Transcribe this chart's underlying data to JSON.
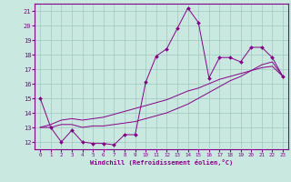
{
  "xlabel": "Windchill (Refroidissement éolien,°C)",
  "xlim": [
    -0.5,
    23.5
  ],
  "ylim": [
    11.5,
    21.5
  ],
  "yticks": [
    12,
    13,
    14,
    15,
    16,
    17,
    18,
    19,
    20,
    21
  ],
  "xticks": [
    0,
    1,
    2,
    3,
    4,
    5,
    6,
    7,
    8,
    9,
    10,
    11,
    12,
    13,
    14,
    15,
    16,
    17,
    18,
    19,
    20,
    21,
    22,
    23
  ],
  "bg_color": "#c8e8e0",
  "grid_color": "#a0c8c0",
  "line_color": "#880088",
  "main_line": [
    15.0,
    13.0,
    12.0,
    12.8,
    12.0,
    11.9,
    11.9,
    11.8,
    12.5,
    12.5,
    16.1,
    17.9,
    18.4,
    19.8,
    21.2,
    20.2,
    16.4,
    17.8,
    17.8,
    17.5,
    18.5,
    18.5,
    17.8,
    16.5
  ],
  "trend_line1": [
    13.0,
    13.0,
    13.2,
    13.2,
    13.0,
    13.1,
    13.1,
    13.2,
    13.3,
    13.4,
    13.6,
    13.8,
    14.0,
    14.3,
    14.6,
    15.0,
    15.4,
    15.8,
    16.2,
    16.5,
    16.9,
    17.3,
    17.5,
    16.5
  ],
  "trend_line2": [
    13.0,
    13.2,
    13.5,
    13.6,
    13.5,
    13.6,
    13.7,
    13.9,
    14.1,
    14.3,
    14.5,
    14.7,
    14.9,
    15.2,
    15.5,
    15.7,
    16.0,
    16.3,
    16.5,
    16.7,
    16.9,
    17.1,
    17.2,
    16.5
  ]
}
